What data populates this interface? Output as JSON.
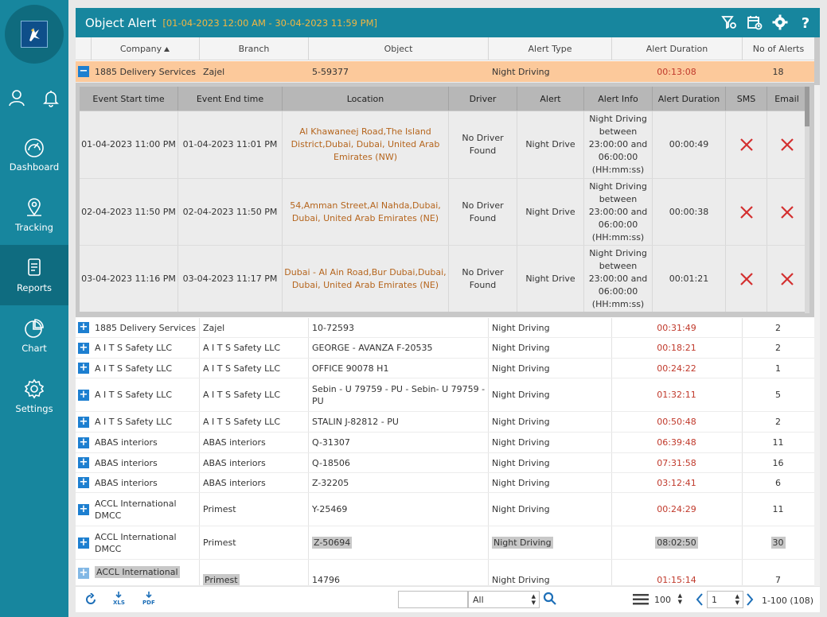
{
  "sidebar": {
    "nav": [
      {
        "label": "Dashboard",
        "icon": "speedometer-icon"
      },
      {
        "label": "Tracking",
        "icon": "location-pin-icon"
      },
      {
        "label": "Reports",
        "icon": "report-icon",
        "active": true
      },
      {
        "label": "Chart",
        "icon": "pie-chart-icon"
      },
      {
        "label": "Settings",
        "icon": "gear-icon"
      }
    ]
  },
  "header": {
    "title": "Object Alert",
    "range": "[01-04-2023 12:00 AM - 30-04-2023 11:59 PM]"
  },
  "grid": {
    "columns": [
      "Company",
      "Branch",
      "Object",
      "Alert Type",
      "Alert Duration",
      "No of Alerts"
    ],
    "sort_column": "Company",
    "expanded_row": {
      "company": "1885 Delivery Services",
      "branch": "Zajel",
      "object": "5-59377",
      "alert_type": "Night Driving",
      "duration": "00:13:08",
      "count": "18"
    },
    "detail": {
      "columns": [
        "Event Start time",
        "Event End time",
        "Location",
        "Driver",
        "Alert",
        "Alert Info",
        "Alert Duration",
        "SMS",
        "Email"
      ],
      "rows": [
        {
          "start": "01-04-2023 11:00 PM",
          "end": "01-04-2023 11:01 PM",
          "loc1": "Al Khawaneej Road,The Island",
          "loc2": "District,Dubai, Dubai, United Arab",
          "loc3": "Emirates (NW)",
          "driver1": "No Driver",
          "driver2": "Found",
          "alert": "Night Drive",
          "info1": "Night Driving",
          "info2": "between",
          "info3": "23:00:00 and",
          "info4": "06:00:00",
          "info5": "(HH:mm:ss)",
          "duration": "00:00:49"
        },
        {
          "start": "02-04-2023 11:50 PM",
          "end": "02-04-2023 11:50 PM",
          "loc1": "54,Amman Street,Al Nahda,Dubai,",
          "loc2": "Dubai, United Arab Emirates (NE)",
          "loc3": "",
          "driver1": "No Driver",
          "driver2": "Found",
          "alert": "Night Drive",
          "info1": "Night Driving",
          "info2": "between",
          "info3": "23:00:00 and",
          "info4": "06:00:00",
          "info5": "(HH:mm:ss)",
          "duration": "00:00:38"
        },
        {
          "start": "03-04-2023 11:16 PM",
          "end": "03-04-2023 11:17 PM",
          "loc1": "Dubai - Al Ain Road,Bur Dubai,Dubai,",
          "loc2": "Dubai, United Arab Emirates (NE)",
          "loc3": "",
          "driver1": "No Driver",
          "driver2": "Found",
          "alert": "Night Drive",
          "info1": "Night Driving",
          "info2": "between",
          "info3": "23:00:00 and",
          "info4": "06:00:00",
          "info5": "(HH:mm:ss)",
          "duration": "00:01:21"
        }
      ]
    },
    "rows": [
      {
        "company": "1885 Delivery Services",
        "company2": "",
        "branch": "Zajel",
        "object": "10-72593",
        "object2": "",
        "alert_type": "Night Driving",
        "duration": "00:31:49",
        "count": "2"
      },
      {
        "company": "A I T S Safety LLC",
        "company2": "",
        "branch": "A I T S Safety LLC",
        "object": "GEORGE - AVANZA F-20535",
        "object2": "",
        "alert_type": "Night Driving",
        "duration": "00:18:21",
        "count": "2"
      },
      {
        "company": "A I T S Safety LLC",
        "company2": "",
        "branch": "A I T S Safety LLC",
        "object": "OFFICE 90078 H1",
        "object2": "",
        "alert_type": "Night Driving",
        "duration": "00:24:22",
        "count": "1"
      },
      {
        "company": "A I T S Safety LLC",
        "company2": "",
        "branch": "A I T S Safety LLC",
        "object": "Sebin - U 79759 - PU - Sebin- U 79759 -",
        "object2": "PU",
        "alert_type": "Night Driving",
        "duration": "01:32:11",
        "count": "5"
      },
      {
        "company": "A I T S Safety LLC",
        "company2": "",
        "branch": "A I T S Safety LLC",
        "object": "STALIN J-82812 - PU",
        "object2": "",
        "alert_type": "Night Driving",
        "duration": "00:50:48",
        "count": "2"
      },
      {
        "company": "ABAS interiors",
        "company2": "",
        "branch": "ABAS interiors",
        "object": "Q-31307",
        "object2": "",
        "alert_type": "Night Driving",
        "duration": "06:39:48",
        "count": "11"
      },
      {
        "company": "ABAS interiors",
        "company2": "",
        "branch": "ABAS interiors",
        "object": "Q-18506",
        "object2": "",
        "alert_type": "Night Driving",
        "duration": "07:31:58",
        "count": "16"
      },
      {
        "company": "ABAS interiors",
        "company2": "",
        "branch": "ABAS interiors",
        "object": "Z-32205",
        "object2": "",
        "alert_type": "Night Driving",
        "duration": "03:12:41",
        "count": "6"
      },
      {
        "company": "ACCL International",
        "company2": "DMCC",
        "branch": "Primest",
        "object": "Y-25469",
        "object2": "",
        "alert_type": "Night Driving",
        "duration": "00:24:29",
        "count": "11"
      },
      {
        "company": "ACCL International",
        "company2": "DMCC",
        "branch": "Primest",
        "object": "Z-50694",
        "object2": "",
        "alert_type": "Night Driving",
        "duration": "08:02:50",
        "count": "30"
      },
      {
        "company": "ACCL International",
        "company2": "",
        "branch": "Primest",
        "object": "14796",
        "object2": "",
        "alert_type": "Night Driving",
        "duration": "01:15:14",
        "count": "7"
      }
    ]
  },
  "footer": {
    "xls_label": "XLS",
    "pdf_label": "PDF",
    "filter_value": "",
    "filter_select": "All",
    "page_size": "100",
    "page": "1",
    "range_text": "1-100 (108)"
  },
  "colors": {
    "primary": "#17869e",
    "accent": "#f0b642",
    "selected_row": "#fcc99b",
    "duration": "#c0392b",
    "location": "#b5651d",
    "x_mark": "#d32f2f"
  }
}
